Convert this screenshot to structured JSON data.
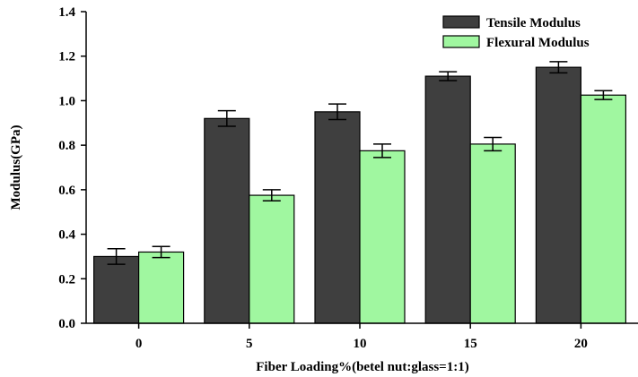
{
  "chart_data": {
    "type": "bar",
    "xlabel": "Fiber Loading%(betel nut:glass=1:1)",
    "ylabel": "Modulus(GPa)",
    "ylim": [
      0,
      1.4
    ],
    "yticks": [
      "0.0",
      "0.2",
      "0.4",
      "0.6",
      "0.8",
      "1.0",
      "1.2",
      "1.4"
    ],
    "categories": [
      "0",
      "5",
      "10",
      "15",
      "20"
    ],
    "legend_position": "top-right",
    "grid": false,
    "series": [
      {
        "name": "Tensile Modulus",
        "color": "#3f3f3f",
        "values": [
          0.3,
          0.92,
          0.95,
          1.11,
          1.15
        ],
        "errors": [
          0.035,
          0.035,
          0.035,
          0.02,
          0.025
        ]
      },
      {
        "name": "Flexural Modulus",
        "color": "#a0f7a0",
        "values": [
          0.32,
          0.575,
          0.775,
          0.805,
          1.025
        ],
        "errors": [
          0.025,
          0.025,
          0.03,
          0.03,
          0.02
        ]
      }
    ]
  }
}
